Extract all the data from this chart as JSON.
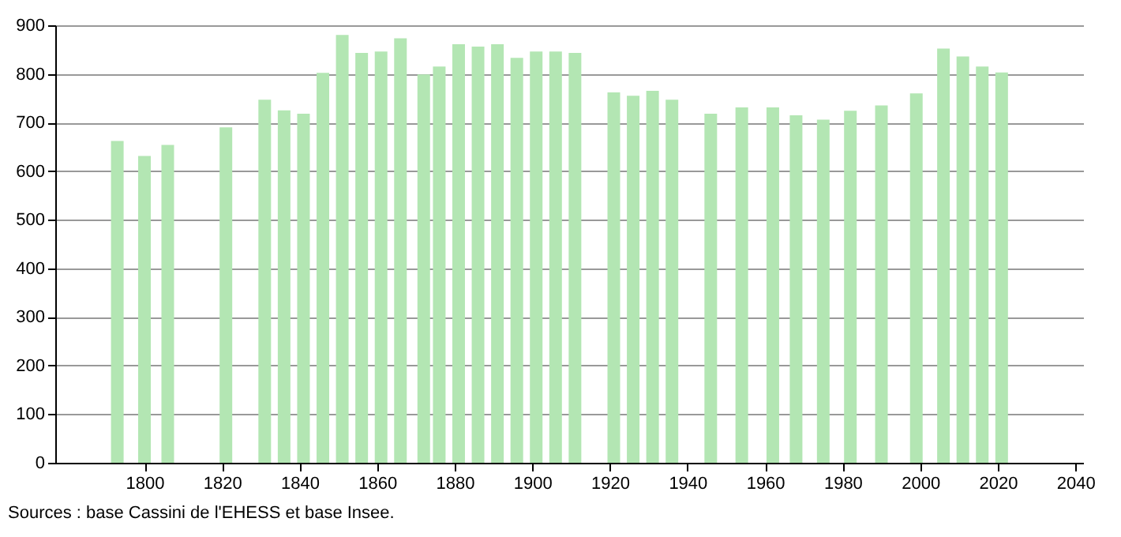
{
  "chart_data": {
    "type": "bar",
    "x": [
      1793,
      1800,
      1806,
      1821,
      1831,
      1836,
      1841,
      1846,
      1851,
      1856,
      1861,
      1866,
      1872,
      1876,
      1881,
      1886,
      1891,
      1896,
      1901,
      1906,
      1911,
      1921,
      1926,
      1931,
      1936,
      1946,
      1954,
      1962,
      1968,
      1975,
      1982,
      1990,
      1999,
      2006,
      2011,
      2016,
      2021
    ],
    "values": [
      662,
      631,
      654,
      690,
      747,
      725,
      718,
      802,
      880,
      843,
      846,
      873,
      799,
      815,
      861,
      856,
      861,
      833,
      846,
      846,
      843,
      762,
      755,
      765,
      747,
      718,
      731,
      731,
      715,
      706,
      724,
      735,
      760,
      852,
      836,
      815,
      803
    ],
    "color": "#b3e6b3",
    "xlim": [
      1777,
      2042
    ],
    "xticks": [
      1800,
      1820,
      1840,
      1860,
      1880,
      1900,
      1920,
      1940,
      1960,
      1980,
      2000,
      2020,
      2040
    ],
    "ylim": [
      0,
      900
    ],
    "yticks": [
      0,
      100,
      200,
      300,
      400,
      500,
      600,
      700,
      800,
      900
    ],
    "grid": "y",
    "annotations": [
      "Sources : base Cassini de l'EHESS et base Insee."
    ]
  }
}
